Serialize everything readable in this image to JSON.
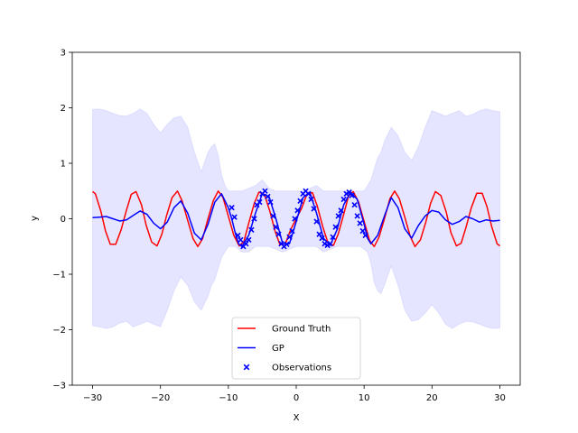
{
  "chart_data": {
    "type": "line",
    "title": "",
    "xlabel": "X",
    "ylabel": "y",
    "xlim": [
      -33,
      33
    ],
    "ylim": [
      -3,
      3
    ],
    "xticks": [
      -30,
      -20,
      -10,
      0,
      10,
      20,
      30
    ],
    "yticks": [
      -3,
      -2,
      -1,
      0,
      1,
      2,
      3
    ],
    "xtick_labels": [
      "−30",
      "−20",
      "−10",
      "0",
      "10",
      "20",
      "30"
    ],
    "ytick_labels": [
      "−3",
      "−2",
      "−1",
      "0",
      "1",
      "2",
      "3"
    ],
    "grid": false,
    "legend_placement": "bottom-center",
    "series": [
      {
        "name": "Ground Truth",
        "kind": "line",
        "color": "#ff0000",
        "x": [
          -30,
          -29.6,
          -28.8,
          -28.1,
          -27.4,
          -26.6,
          -25.8,
          -25.0,
          -24.3,
          -23.6,
          -22.8,
          -22.1,
          -21.3,
          -20.5,
          -19.8,
          -19.1,
          -18.3,
          -17.5,
          -16.8,
          -16.0,
          -15.2,
          -14.5,
          -13.8,
          -13.0,
          -12.2,
          -11.5,
          -10.8,
          -10.0,
          -9.2,
          -8.4,
          -7.7,
          -7.0,
          -6.2,
          -5.5,
          -4.7,
          -3.9,
          -3.1,
          -2.4,
          -1.6,
          -0.8,
          0.0,
          0.8,
          1.6,
          2.4,
          3.1,
          3.9,
          4.7,
          5.5,
          6.2,
          7.0,
          7.7,
          8.4,
          9.2,
          10.0,
          10.8,
          11.5,
          12.2,
          13.0,
          13.8,
          14.5,
          15.2,
          16.0,
          16.8,
          17.5,
          18.3,
          19.1,
          19.8,
          20.5,
          21.3,
          22.1,
          22.8,
          23.6,
          24.3,
          25.0,
          25.8,
          26.6,
          27.4,
          28.1,
          28.8,
          29.6,
          30
        ],
        "y": [
          0.49,
          0.45,
          0.14,
          -0.22,
          -0.46,
          -0.46,
          -0.2,
          0.16,
          0.44,
          0.49,
          0.25,
          -0.12,
          -0.42,
          -0.49,
          -0.28,
          0.06,
          0.38,
          0.5,
          0.32,
          -0.03,
          -0.36,
          -0.5,
          -0.36,
          0.0,
          0.33,
          0.5,
          0.39,
          0.05,
          -0.3,
          -0.49,
          -0.41,
          -0.08,
          0.27,
          0.48,
          0.44,
          0.14,
          -0.23,
          -0.47,
          -0.45,
          -0.19,
          0.0,
          0.19,
          0.45,
          0.47,
          0.23,
          -0.14,
          -0.44,
          -0.48,
          -0.27,
          0.08,
          0.41,
          0.49,
          0.3,
          -0.05,
          -0.39,
          -0.5,
          -0.33,
          0.0,
          0.36,
          0.5,
          0.36,
          0.03,
          -0.32,
          -0.5,
          -0.38,
          -0.06,
          0.28,
          0.49,
          0.42,
          0.12,
          -0.25,
          -0.49,
          -0.44,
          -0.16,
          0.2,
          0.46,
          0.46,
          0.22,
          -0.14,
          -0.45,
          -0.49
        ]
      },
      {
        "name": "GP",
        "kind": "line",
        "color": "#0000ff",
        "x": [
          -30,
          -29.0,
          -28.0,
          -27.0,
          -26.0,
          -25.0,
          -24.0,
          -23.0,
          -22.0,
          -21.0,
          -20.0,
          -19.0,
          -18.0,
          -17.0,
          -16.0,
          -15.0,
          -14.0,
          -13.0,
          -12.0,
          -11.0,
          -10.0,
          -9.5,
          -9.0,
          -8.5,
          -8.0,
          -7.0,
          -6.0,
          -5.0,
          -4.0,
          -3.0,
          -2.0,
          -1.0,
          0.0,
          1.0,
          2.0,
          3.0,
          4.0,
          5.0,
          6.0,
          7.0,
          8.0,
          9.0,
          10.0,
          10.5,
          11.0,
          12.0,
          13.0,
          14.0,
          15.0,
          16.0,
          17.0,
          18.0,
          19.0,
          20.0,
          21.0,
          22.0,
          23.0,
          24.0,
          25.0,
          26.0,
          27.0,
          28.0,
          29.0,
          30
        ],
        "y": [
          0.02,
          0.03,
          0.04,
          0.0,
          -0.04,
          -0.02,
          0.06,
          0.14,
          0.08,
          -0.08,
          -0.18,
          -0.06,
          0.2,
          0.32,
          0.1,
          -0.26,
          -0.38,
          -0.1,
          0.3,
          0.45,
          0.2,
          0.0,
          -0.25,
          -0.45,
          -0.5,
          -0.3,
          0.1,
          0.45,
          0.4,
          0.0,
          -0.45,
          -0.45,
          -0.05,
          0.38,
          0.48,
          0.1,
          -0.35,
          -0.48,
          -0.2,
          0.25,
          0.48,
          0.35,
          -0.1,
          -0.35,
          -0.45,
          -0.3,
          0.05,
          0.38,
          0.2,
          -0.18,
          -0.35,
          -0.12,
          0.05,
          0.15,
          0.12,
          -0.02,
          -0.1,
          -0.05,
          0.04,
          0.0,
          -0.06,
          -0.02,
          -0.04,
          -0.03
        ]
      },
      {
        "name": "Observations",
        "kind": "scatter",
        "color": "#0000ff",
        "marker": "x",
        "x": [
          -9.5,
          -9.1,
          -8.6,
          -8.2,
          -7.8,
          -7.4,
          -7.0,
          -6.6,
          -6.2,
          -5.8,
          -5.4,
          -5.0,
          -4.6,
          -4.2,
          -3.8,
          -3.4,
          -3.0,
          -2.6,
          -2.2,
          -1.8,
          -1.4,
          -1.0,
          -0.6,
          -0.2,
          0.2,
          0.6,
          1.0,
          1.4,
          1.8,
          2.2,
          2.6,
          3.0,
          3.4,
          3.8,
          4.2,
          4.6,
          5.0,
          5.4,
          5.8,
          6.2,
          6.6,
          7.0,
          7.4,
          7.8,
          8.2,
          8.6,
          9.0,
          9.4,
          9.8,
          10.2
        ],
        "y": [
          0.2,
          0.03,
          -0.3,
          -0.38,
          -0.5,
          -0.45,
          -0.38,
          -0.2,
          0.0,
          0.25,
          0.3,
          0.45,
          0.5,
          0.4,
          0.3,
          0.05,
          -0.15,
          -0.28,
          -0.45,
          -0.5,
          -0.46,
          -0.33,
          -0.22,
          0.0,
          0.15,
          0.32,
          0.45,
          0.5,
          0.45,
          0.35,
          0.18,
          -0.05,
          -0.28,
          -0.35,
          -0.45,
          -0.48,
          -0.45,
          -0.33,
          -0.15,
          0.05,
          0.15,
          0.35,
          0.45,
          0.48,
          0.42,
          0.25,
          0.05,
          -0.08,
          -0.22,
          -0.3
        ]
      }
    ],
    "confidence_band": {
      "color": "#0000ff",
      "alpha": 0.1,
      "x": [
        -30,
        -29.0,
        -28.0,
        -27.0,
        -26.0,
        -25.0,
        -24.0,
        -23.0,
        -22.0,
        -21.0,
        -20.0,
        -19.0,
        -18.0,
        -17.0,
        -16.0,
        -15.0,
        -14.0,
        -13.0,
        -12.5,
        -12.0,
        -11.5,
        -11.0,
        -10.5,
        -10.0,
        -9.5,
        -9.0,
        -8.0,
        -7.0,
        -6.0,
        -5.0,
        -4.0,
        -3.0,
        -2.0,
        -1.0,
        0.0,
        1.0,
        2.0,
        3.0,
        4.0,
        5.0,
        6.0,
        7.0,
        8.0,
        9.0,
        9.5,
        10.0,
        10.5,
        11.0,
        11.5,
        12.0,
        12.5,
        13.0,
        14.0,
        15.0,
        16.0,
        17.0,
        18.0,
        19.0,
        20.0,
        21.0,
        22.0,
        23.0,
        24.0,
        25.0,
        26.0,
        27.0,
        28.0,
        29.0,
        30
      ],
      "upper": [
        1.97,
        1.98,
        1.95,
        1.9,
        1.86,
        1.85,
        1.9,
        1.98,
        1.9,
        1.7,
        1.55,
        1.7,
        1.82,
        1.85,
        1.65,
        1.2,
        0.85,
        1.2,
        1.3,
        1.35,
        1.15,
        0.8,
        0.6,
        0.5,
        0.5,
        0.5,
        0.5,
        0.55,
        0.6,
        0.7,
        0.55,
        0.5,
        0.5,
        0.5,
        0.5,
        0.5,
        0.55,
        0.6,
        0.5,
        0.5,
        0.5,
        0.5,
        0.5,
        0.5,
        0.5,
        0.5,
        0.6,
        0.7,
        0.9,
        1.1,
        1.2,
        1.4,
        1.65,
        1.5,
        1.2,
        1.05,
        1.3,
        1.65,
        1.95,
        1.9,
        1.85,
        1.9,
        1.95,
        1.85,
        1.88,
        1.95,
        1.98,
        1.95,
        1.93
      ],
      "lower": [
        -1.93,
        -1.95,
        -1.98,
        -1.95,
        -1.88,
        -1.85,
        -1.95,
        -1.9,
        -1.85,
        -1.9,
        -1.95,
        -1.65,
        -1.3,
        -1.05,
        -1.2,
        -1.5,
        -1.65,
        -1.4,
        -1.2,
        -1.1,
        -0.9,
        -0.7,
        -0.6,
        -0.5,
        -0.5,
        -0.5,
        -0.6,
        -0.6,
        -0.5,
        -0.5,
        -0.5,
        -0.55,
        -0.6,
        -0.55,
        -0.5,
        -0.5,
        -0.5,
        -0.5,
        -0.6,
        -0.55,
        -0.5,
        -0.5,
        -0.5,
        -0.5,
        -0.5,
        -0.55,
        -0.6,
        -0.8,
        -1.15,
        -1.3,
        -1.35,
        -1.2,
        -0.85,
        -1.2,
        -1.65,
        -1.85,
        -1.82,
        -1.7,
        -1.55,
        -1.7,
        -1.9,
        -1.98,
        -1.9,
        -1.85,
        -1.86,
        -1.9,
        -1.95,
        -1.98,
        -1.97
      ]
    }
  }
}
